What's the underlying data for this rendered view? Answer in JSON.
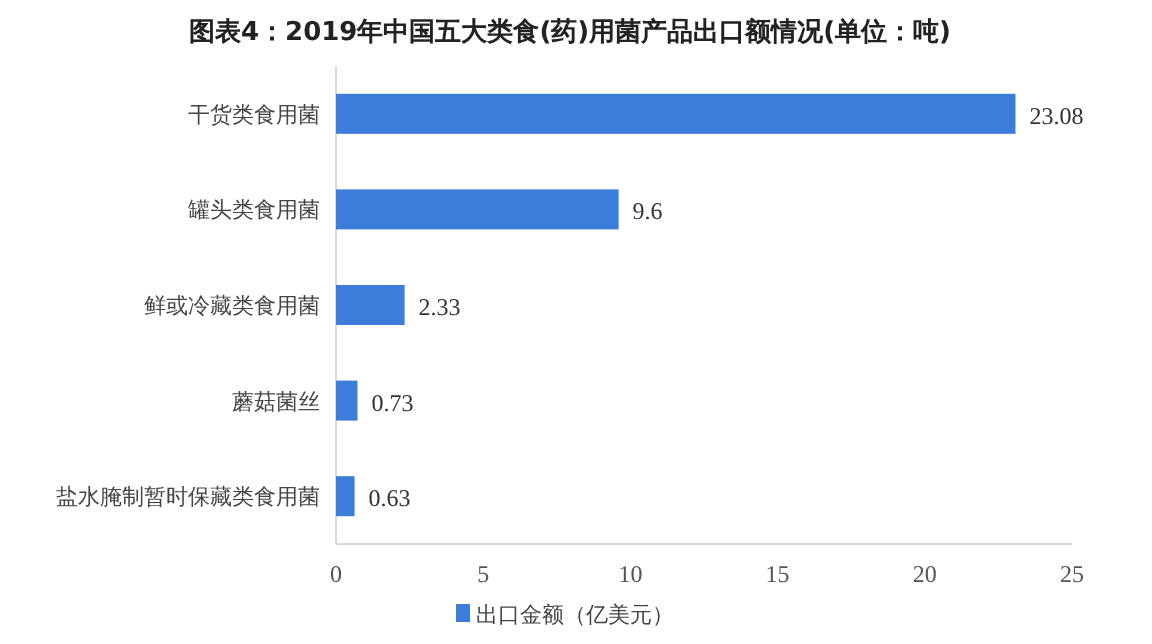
{
  "chart_data": {
    "type": "bar",
    "orientation": "horizontal",
    "title": "图表4：2019年中国五大类食(药)用菌产品出口额情况(单位：吨)",
    "categories": [
      "干货类食用菌",
      "罐头类食用菌",
      "鲜或冷藏类食用菌",
      "蘑菇菌丝",
      "盐水腌制暂时保藏类食用菌"
    ],
    "series": [
      {
        "name": "出口金额（亿美元）",
        "color": "#3b7dd8",
        "values": [
          23.08,
          9.6,
          2.33,
          0.73,
          0.63
        ]
      }
    ],
    "xlim": [
      0,
      25
    ],
    "xticks": [
      0,
      5,
      10,
      15,
      20,
      25
    ],
    "data_labels": true,
    "legend": "bottom",
    "grid": false
  }
}
